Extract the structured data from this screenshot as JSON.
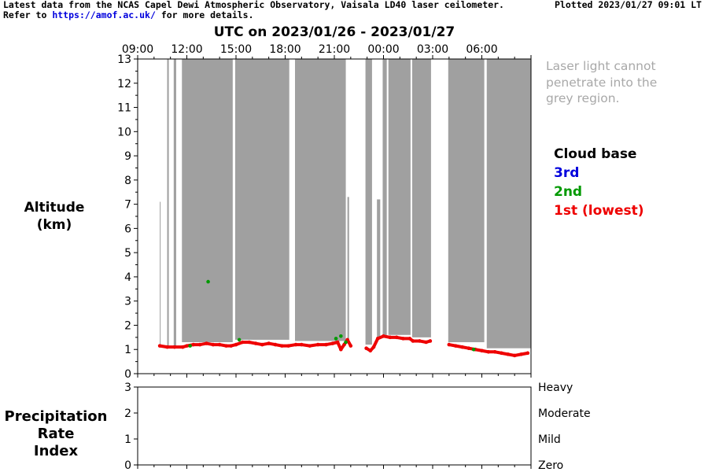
{
  "header": {
    "line1": "Latest data from the NCAS Capel Dewi Atmospheric Observatory, Vaisala LD40 laser ceilometer.",
    "line2_prefix": "Refer to",
    "link": "https://amof.ac.uk/",
    "line2_suffix": "for more details.",
    "plotted": "Plotted 2023/01/27 09:01 LT"
  },
  "note": {
    "line1": "Laser light cannot",
    "line2": "penetrate into the",
    "line3": "grey region."
  },
  "legend": {
    "title": "Cloud base",
    "third": "3rd",
    "second": "2nd",
    "first": "1st (lowest)"
  },
  "colors": {
    "grey_region": "#a0a0a0",
    "first": "#ee0000",
    "second": "#009900",
    "third": "#0000dd",
    "note_text": "#a8a8a8"
  },
  "chart_data": [
    {
      "type": "area",
      "title": "UTC on 2023/01/26 - 2023/01/27",
      "ylabel_line1": "Altitude",
      "ylabel_line2": "(km)",
      "x_unit": "hours since 2023/01/26 09:00 UTC",
      "xlim": [
        0,
        24
      ],
      "ylim": [
        0,
        13
      ],
      "x_ticks": [
        0,
        3,
        6,
        9,
        12,
        15,
        18,
        21
      ],
      "x_tick_labels": [
        "09:00",
        "12:00",
        "15:00",
        "18:00",
        "21:00",
        "00:00",
        "03:00",
        "06:00"
      ],
      "y_ticks": [
        0,
        1,
        2,
        3,
        4,
        5,
        6,
        7,
        8,
        9,
        10,
        11,
        12,
        13
      ],
      "grid": false,
      "legend_position": "right",
      "grey_region": [
        {
          "start": 1.35,
          "end": 1.4,
          "top": 7.1,
          "bottom": 1.1
        },
        {
          "start": 1.8,
          "end": 1.9,
          "top": 13,
          "bottom": 1.1
        },
        {
          "start": 2.2,
          "end": 2.35,
          "top": 13,
          "bottom": 1.1
        },
        {
          "start": 2.7,
          "end": 5.8,
          "top": 13,
          "bottom": 1.3
        },
        {
          "start": 5.95,
          "end": 9.25,
          "top": 13,
          "bottom": 1.4
        },
        {
          "start": 9.6,
          "end": 12.7,
          "top": 13,
          "bottom": 1.35
        },
        {
          "start": 12.8,
          "end": 12.9,
          "top": 7.3,
          "bottom": 1.4
        },
        {
          "start": 13.9,
          "end": 14.3,
          "top": 13,
          "bottom": 1.2
        },
        {
          "start": 14.6,
          "end": 14.8,
          "top": 7.2,
          "bottom": 1.5
        },
        {
          "start": 14.95,
          "end": 15.2,
          "top": 13,
          "bottom": 1.5
        },
        {
          "start": 15.3,
          "end": 16.65,
          "top": 13,
          "bottom": 1.6
        },
        {
          "start": 16.75,
          "end": 17.9,
          "top": 13,
          "bottom": 1.5
        },
        {
          "start": 18.95,
          "end": 21.15,
          "top": 13,
          "bottom": 1.3
        },
        {
          "start": 21.3,
          "end": 24,
          "top": 13,
          "bottom": 1.05
        }
      ],
      "series": [
        {
          "name": "1st (lowest)",
          "color": "#ee0000",
          "points": [
            [
              1.35,
              1.15
            ],
            [
              1.8,
              1.1
            ],
            [
              2.25,
              1.1
            ],
            [
              2.75,
              1.1
            ],
            [
              3.0,
              1.15
            ],
            [
              3.4,
              1.2
            ],
            [
              3.8,
              1.2
            ],
            [
              4.2,
              1.25
            ],
            [
              4.6,
              1.2
            ],
            [
              5.0,
              1.2
            ],
            [
              5.4,
              1.15
            ],
            [
              5.7,
              1.15
            ],
            [
              6.0,
              1.2
            ],
            [
              6.4,
              1.3
            ],
            [
              6.8,
              1.3
            ],
            [
              7.2,
              1.25
            ],
            [
              7.6,
              1.2
            ],
            [
              8.0,
              1.25
            ],
            [
              8.4,
              1.2
            ],
            [
              8.8,
              1.15
            ],
            [
              9.2,
              1.15
            ],
            [
              9.65,
              1.2
            ],
            [
              10.0,
              1.2
            ],
            [
              10.5,
              1.15
            ],
            [
              11.0,
              1.2
            ],
            [
              11.5,
              1.2
            ],
            [
              11.9,
              1.25
            ],
            [
              12.2,
              1.3
            ],
            [
              12.4,
              1.0
            ],
            [
              12.6,
              1.2
            ],
            [
              12.8,
              1.4
            ],
            [
              13.0,
              1.15
            ],
            [
              13.95,
              1.05
            ],
            [
              14.2,
              0.95
            ],
            [
              14.4,
              1.1
            ],
            [
              14.65,
              1.45
            ],
            [
              15.0,
              1.55
            ],
            [
              15.4,
              1.5
            ],
            [
              15.8,
              1.5
            ],
            [
              16.2,
              1.45
            ],
            [
              16.6,
              1.45
            ],
            [
              16.8,
              1.35
            ],
            [
              17.2,
              1.35
            ],
            [
              17.6,
              1.3
            ],
            [
              17.85,
              1.35
            ],
            [
              19.0,
              1.2
            ],
            [
              19.4,
              1.15
            ],
            [
              19.8,
              1.1
            ],
            [
              20.2,
              1.05
            ],
            [
              20.6,
              1.0
            ],
            [
              21.0,
              0.95
            ],
            [
              21.4,
              0.9
            ],
            [
              21.8,
              0.9
            ],
            [
              22.2,
              0.85
            ],
            [
              22.6,
              0.8
            ],
            [
              23.0,
              0.75
            ],
            [
              23.4,
              0.8
            ],
            [
              23.8,
              0.85
            ]
          ]
        },
        {
          "name": "2nd",
          "color": "#009900",
          "points": [
            [
              3.2,
              1.15
            ],
            [
              4.3,
              3.8
            ],
            [
              6.2,
              1.4
            ],
            [
              12.1,
              1.45
            ],
            [
              12.4,
              1.55
            ],
            [
              12.7,
              1.3
            ],
            [
              20.5,
              1.0
            ]
          ]
        },
        {
          "name": "3rd",
          "color": "#0000dd",
          "points": []
        }
      ]
    },
    {
      "type": "line",
      "ylabel_line1": "Precipitation",
      "ylabel_line2": "Rate",
      "ylabel_line3": "Index",
      "xlim": [
        0,
        24
      ],
      "ylim": [
        0,
        3
      ],
      "y_ticks": [
        0,
        1,
        2,
        3
      ],
      "right_labels": [
        "Zero",
        "Mild",
        "Moderate",
        "Heavy"
      ],
      "values": []
    }
  ]
}
